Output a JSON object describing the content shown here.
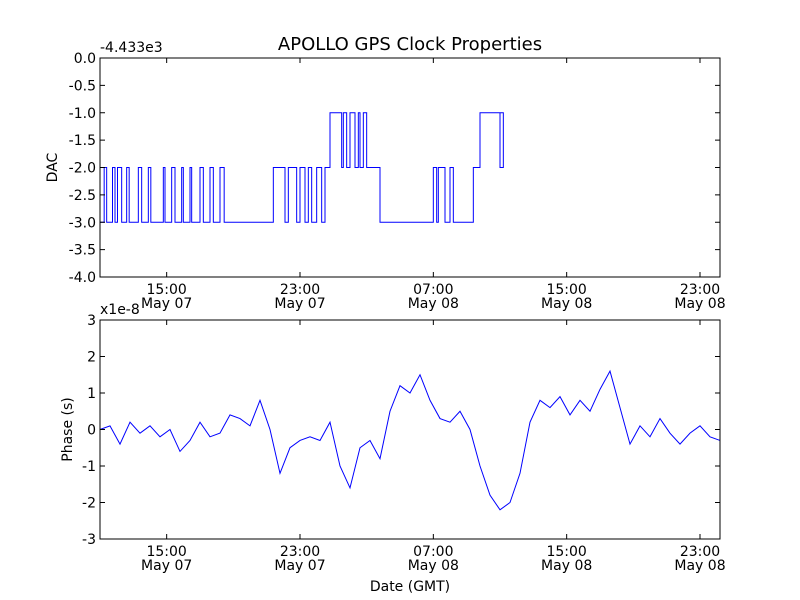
{
  "figure": {
    "title": "APOLLO GPS Clock Properties"
  },
  "chart_data": [
    {
      "type": "line",
      "name": "dac",
      "title": "APOLLO GPS Clock Properties",
      "ylabel": "DAC",
      "xlabel": "",
      "offset_label": "-4.433e3",
      "x_unit": "hours since May 07 00:00 GMT",
      "xlim": [
        11.0,
        48.2
      ],
      "ylim": [
        -4.0,
        0.0
      ],
      "yticks": [
        0.0,
        -0.5,
        -1.0,
        -1.5,
        -2.0,
        -2.5,
        -3.0,
        -3.5,
        -4.0
      ],
      "ytick_labels": [
        "0.0",
        "-0.5",
        "-1.0",
        "-1.5",
        "-2.0",
        "-2.5",
        "-3.0",
        "-3.5",
        "-4.0"
      ],
      "xticks": [
        15,
        23,
        31,
        39,
        47
      ],
      "xtick_labels": [
        [
          "15:00",
          "May 07"
        ],
        [
          "23:00",
          "May 07"
        ],
        [
          "07:00",
          "May 08"
        ],
        [
          "15:00",
          "May 08"
        ],
        [
          "23:00",
          "May 08"
        ]
      ],
      "color": "#0000ff",
      "series": [
        {
          "name": "DAC",
          "points": [
            [
              11.0,
              -3.0
            ],
            [
              11.25,
              -3.0
            ],
            [
              11.25,
              -2.0
            ],
            [
              11.4,
              -2.0
            ],
            [
              11.4,
              -3.0
            ],
            [
              11.75,
              -3.0
            ],
            [
              11.75,
              -2.0
            ],
            [
              11.9,
              -2.0
            ],
            [
              11.9,
              -3.0
            ],
            [
              12.05,
              -3.0
            ],
            [
              12.05,
              -2.0
            ],
            [
              12.3,
              -2.0
            ],
            [
              12.3,
              -3.0
            ],
            [
              12.6,
              -3.0
            ],
            [
              12.6,
              -2.0
            ],
            [
              12.75,
              -2.0
            ],
            [
              12.75,
              -3.0
            ],
            [
              13.3,
              -3.0
            ],
            [
              13.3,
              -2.0
            ],
            [
              13.5,
              -2.0
            ],
            [
              13.5,
              -3.0
            ],
            [
              13.9,
              -3.0
            ],
            [
              13.9,
              -2.0
            ],
            [
              14.05,
              -2.0
            ],
            [
              14.05,
              -3.0
            ],
            [
              14.8,
              -3.0
            ],
            [
              14.8,
              -2.0
            ],
            [
              14.9,
              -2.0
            ],
            [
              14.9,
              -3.0
            ],
            [
              15.3,
              -3.0
            ],
            [
              15.3,
              -2.0
            ],
            [
              15.5,
              -2.0
            ],
            [
              15.5,
              -3.0
            ],
            [
              15.9,
              -3.0
            ],
            [
              15.9,
              -2.0
            ],
            [
              16.0,
              -2.0
            ],
            [
              16.0,
              -3.0
            ],
            [
              16.4,
              -3.0
            ],
            [
              16.4,
              -2.0
            ],
            [
              16.5,
              -2.0
            ],
            [
              16.5,
              -3.0
            ],
            [
              17.0,
              -3.0
            ],
            [
              17.0,
              -2.0
            ],
            [
              17.2,
              -2.0
            ],
            [
              17.2,
              -3.0
            ],
            [
              17.6,
              -3.0
            ],
            [
              17.6,
              -2.0
            ],
            [
              17.8,
              -2.0
            ],
            [
              17.8,
              -3.0
            ],
            [
              18.2,
              -3.0
            ],
            [
              18.2,
              -2.0
            ],
            [
              18.45,
              -2.0
            ],
            [
              18.45,
              -3.0
            ],
            [
              21.4,
              -3.0
            ],
            [
              21.4,
              -2.0
            ],
            [
              22.1,
              -2.0
            ],
            [
              22.1,
              -3.0
            ],
            [
              22.3,
              -3.0
            ],
            [
              22.3,
              -2.0
            ],
            [
              22.8,
              -2.0
            ],
            [
              22.8,
              -3.0
            ],
            [
              23.0,
              -3.0
            ],
            [
              23.0,
              -2.0
            ],
            [
              23.3,
              -2.0
            ],
            [
              23.3,
              -3.0
            ],
            [
              23.5,
              -3.0
            ],
            [
              23.5,
              -2.0
            ],
            [
              23.7,
              -2.0
            ],
            [
              23.7,
              -3.0
            ],
            [
              24.0,
              -3.0
            ],
            [
              24.0,
              -2.0
            ],
            [
              24.3,
              -2.0
            ],
            [
              24.3,
              -3.0
            ],
            [
              24.5,
              -3.0
            ],
            [
              24.5,
              -2.0
            ],
            [
              24.8,
              -2.0
            ],
            [
              24.8,
              -1.0
            ],
            [
              25.5,
              -1.0
            ],
            [
              25.5,
              -2.0
            ],
            [
              25.6,
              -2.0
            ],
            [
              25.6,
              -1.0
            ],
            [
              25.8,
              -1.0
            ],
            [
              25.8,
              -2.0
            ],
            [
              26.0,
              -2.0
            ],
            [
              26.0,
              -1.0
            ],
            [
              26.3,
              -1.0
            ],
            [
              26.3,
              -2.0
            ],
            [
              26.5,
              -2.0
            ],
            [
              26.5,
              -1.0
            ],
            [
              26.6,
              -1.0
            ],
            [
              26.6,
              -2.0
            ],
            [
              26.8,
              -2.0
            ],
            [
              26.8,
              -1.0
            ],
            [
              27.0,
              -1.0
            ],
            [
              27.0,
              -2.0
            ],
            [
              27.8,
              -2.0
            ],
            [
              27.8,
              -3.0
            ],
            [
              31.0,
              -3.0
            ],
            [
              31.0,
              -2.0
            ],
            [
              31.2,
              -2.0
            ],
            [
              31.2,
              -3.0
            ],
            [
              31.3,
              -3.0
            ],
            [
              31.3,
              -2.0
            ],
            [
              31.7,
              -2.0
            ],
            [
              31.7,
              -3.0
            ],
            [
              32.0,
              -3.0
            ],
            [
              32.0,
              -2.0
            ],
            [
              32.2,
              -2.0
            ],
            [
              32.2,
              -3.0
            ],
            [
              33.4,
              -3.0
            ],
            [
              33.4,
              -2.0
            ],
            [
              33.8,
              -2.0
            ],
            [
              33.8,
              -1.0
            ],
            [
              35.0,
              -1.0
            ],
            [
              35.0,
              -2.0
            ],
            [
              35.2,
              -2.0
            ],
            [
              35.2,
              -1.0
            ],
            [
              34.65,
              -1.0
            ]
          ]
        }
      ]
    },
    {
      "type": "line",
      "name": "phase",
      "title": "",
      "ylabel": "Phase (s)",
      "xlabel": "Date (GMT)",
      "offset_label": "x1e-8",
      "x_unit": "hours since May 07 00:00 GMT",
      "xlim": [
        11.0,
        48.2
      ],
      "ylim": [
        -3,
        3
      ],
      "yticks": [
        3,
        2,
        1,
        0,
        -1,
        -2,
        -3
      ],
      "ytick_labels": [
        "3",
        "2",
        "1",
        "0",
        "-1",
        "-2",
        "-3"
      ],
      "xticks": [
        15,
        23,
        31,
        39,
        47
      ],
      "xtick_labels": [
        [
          "15:00",
          "May 07"
        ],
        [
          "23:00",
          "May 07"
        ],
        [
          "07:00",
          "May 08"
        ],
        [
          "15:00",
          "May 08"
        ],
        [
          "23:00",
          "May 08"
        ]
      ],
      "color": "#0000ff",
      "series": [
        {
          "name": "Phase",
          "points": [
            [
              11.0,
              0.0
            ],
            [
              11.6,
              0.1
            ],
            [
              12.2,
              -0.4
            ],
            [
              12.8,
              0.2
            ],
            [
              13.4,
              -0.1
            ],
            [
              14.0,
              0.1
            ],
            [
              14.6,
              -0.2
            ],
            [
              15.2,
              0.0
            ],
            [
              15.8,
              -0.6
            ],
            [
              16.4,
              -0.3
            ],
            [
              17.0,
              0.2
            ],
            [
              17.6,
              -0.2
            ],
            [
              18.2,
              -0.1
            ],
            [
              18.8,
              0.4
            ],
            [
              19.4,
              0.3
            ],
            [
              20.0,
              0.1
            ],
            [
              20.6,
              0.8
            ],
            [
              21.2,
              0.0
            ],
            [
              21.8,
              -1.2
            ],
            [
              22.4,
              -0.5
            ],
            [
              23.0,
              -0.3
            ],
            [
              23.6,
              -0.2
            ],
            [
              24.2,
              -0.3
            ],
            [
              24.8,
              0.2
            ],
            [
              25.4,
              -1.0
            ],
            [
              26.0,
              -1.6
            ],
            [
              26.6,
              -0.5
            ],
            [
              27.2,
              -0.3
            ],
            [
              27.8,
              -0.8
            ],
            [
              28.4,
              0.5
            ],
            [
              29.0,
              1.2
            ],
            [
              29.6,
              1.0
            ],
            [
              30.2,
              1.5
            ],
            [
              30.8,
              0.8
            ],
            [
              31.4,
              0.3
            ],
            [
              32.0,
              0.2
            ],
            [
              32.6,
              0.5
            ],
            [
              33.2,
              0.0
            ],
            [
              33.8,
              -1.0
            ],
            [
              34.4,
              -1.8
            ],
            [
              35.0,
              -2.2
            ],
            [
              35.6,
              -2.0
            ],
            [
              36.2,
              -1.2
            ],
            [
              36.8,
              0.2
            ],
            [
              37.4,
              0.8
            ],
            [
              38.0,
              0.6
            ],
            [
              38.6,
              0.9
            ],
            [
              39.2,
              0.4
            ],
            [
              39.8,
              0.8
            ],
            [
              40.4,
              0.5
            ],
            [
              41.0,
              1.1
            ],
            [
              41.6,
              1.6
            ],
            [
              42.2,
              0.6
            ],
            [
              42.8,
              -0.4
            ],
            [
              43.4,
              0.1
            ],
            [
              44.0,
              -0.2
            ],
            [
              44.6,
              0.3
            ],
            [
              45.2,
              -0.1
            ],
            [
              45.8,
              -0.4
            ],
            [
              46.4,
              -0.1
            ],
            [
              47.0,
              0.1
            ],
            [
              47.6,
              -0.2
            ],
            [
              48.2,
              -0.3
            ]
          ]
        }
      ]
    }
  ]
}
